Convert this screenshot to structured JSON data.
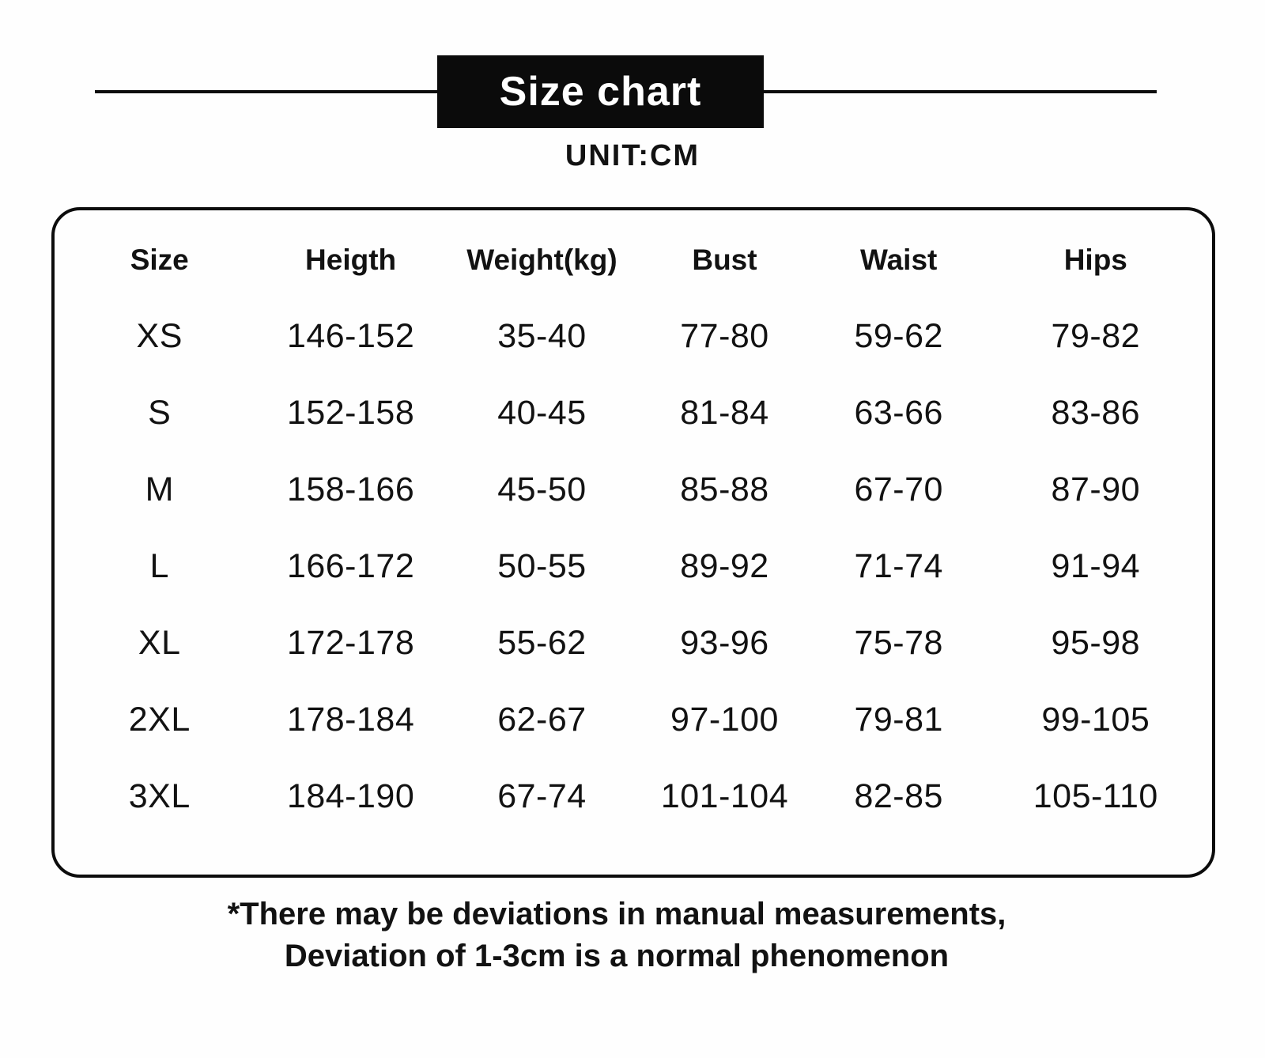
{
  "banner": {
    "title": "Size chart",
    "bg_color": "#0b0b0b",
    "text_color": "#ffffff"
  },
  "unit_label": "UNIT:CM",
  "chart_data": {
    "type": "table",
    "title": "Size chart",
    "unit": "CM",
    "columns": [
      "Size",
      "Heigth",
      "Weight(kg)",
      "Bust",
      "Waist",
      "Hips"
    ],
    "rows": [
      [
        "XS",
        "146-152",
        "35-40",
        "77-80",
        "59-62",
        "79-82"
      ],
      [
        "S",
        "152-158",
        "40-45",
        "81-84",
        "63-66",
        "83-86"
      ],
      [
        "M",
        "158-166",
        "45-50",
        "85-88",
        "67-70",
        "87-90"
      ],
      [
        "L",
        "166-172",
        "50-55",
        "89-92",
        "71-74",
        "91-94"
      ],
      [
        "XL",
        "172-178",
        "55-62",
        "93-96",
        "75-78",
        "95-98"
      ],
      [
        "2XL",
        "178-184",
        "62-67",
        "97-100",
        "79-81",
        "99-105"
      ],
      [
        "3XL",
        "184-190",
        "67-74",
        "101-104",
        "82-85",
        "105-110"
      ]
    ]
  },
  "footnote": {
    "line1": "*There may be deviations in manual measurements,",
    "line2": "Deviation of 1-3cm is a normal phenomenon"
  }
}
